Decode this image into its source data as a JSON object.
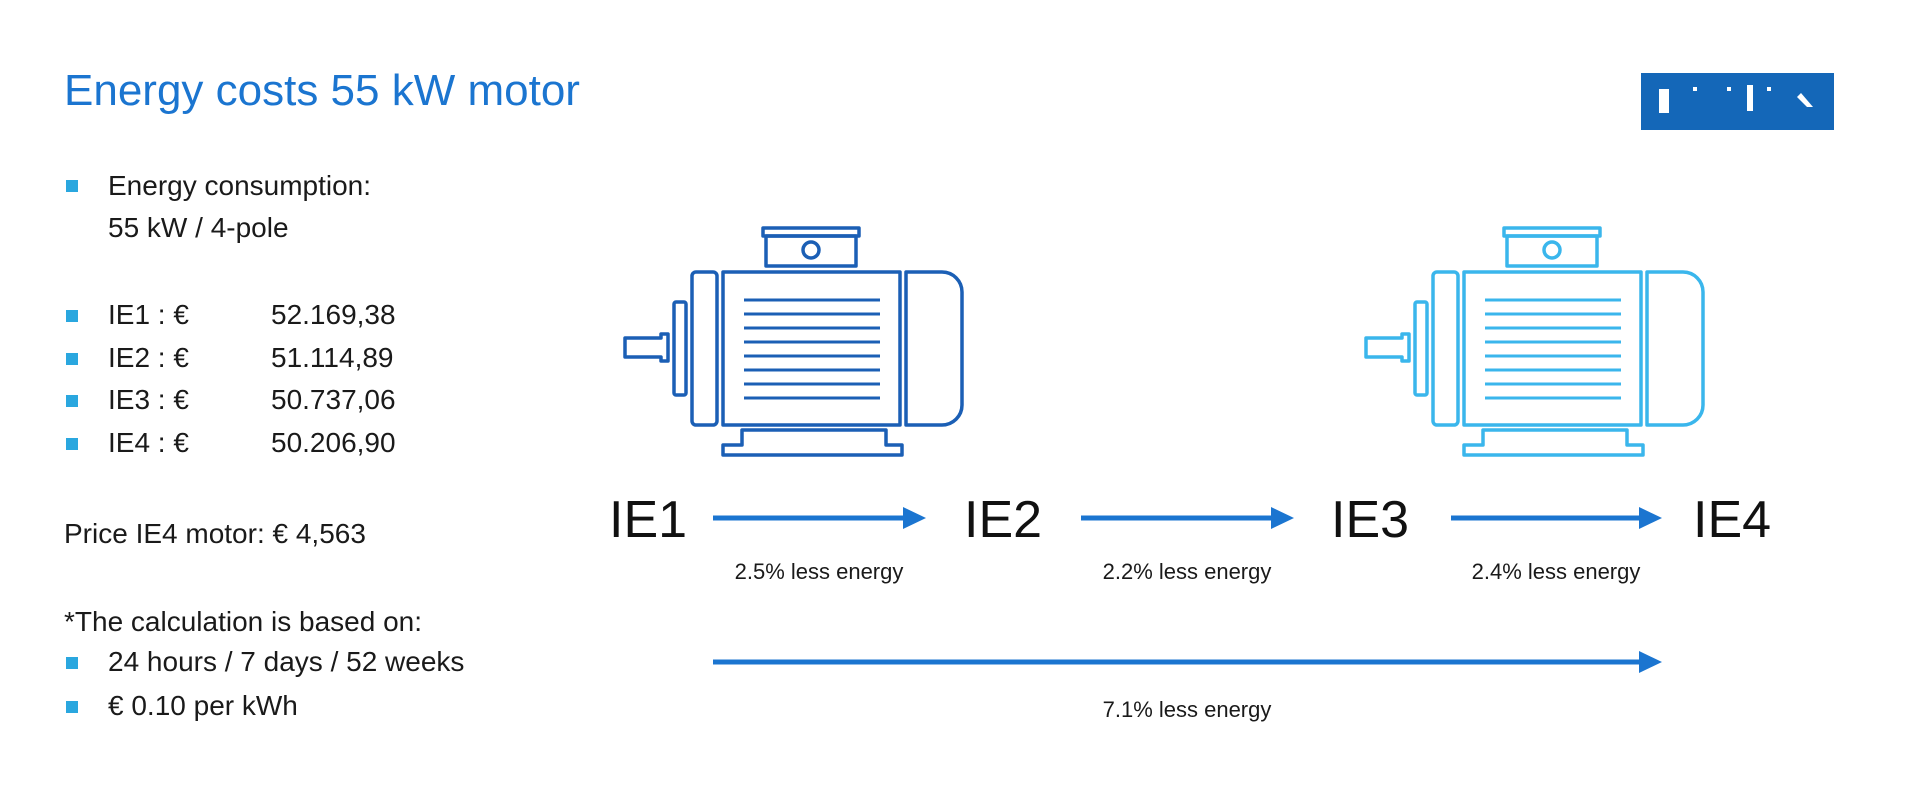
{
  "title": "Energy costs 55 kW motor",
  "logo_text": "ERIKS",
  "consumption": {
    "label": "Energy consumption:",
    "value": "55 kW / 4-pole"
  },
  "costs": [
    {
      "label": "IE1 : €",
      "value": "52.169,38"
    },
    {
      "label": "IE2 : €",
      "value": "51.114,89"
    },
    {
      "label": "IE3 : €",
      "value": "50.737,06"
    },
    {
      "label": "IE4 : €",
      "value": "50.206,90"
    }
  ],
  "price": "Price IE4 motor: € 4,563",
  "calc": {
    "heading": "*The calculation is based on:",
    "items": [
      "24 hours / 7 days / 52 weeks",
      "€ 0.10 per kWh"
    ]
  },
  "classes": [
    "IE1",
    "IE2",
    "IE3",
    "IE4"
  ],
  "steps": [
    "2.5% less energy",
    "2.2% less energy",
    "2.4% less energy"
  ],
  "total": "7.1% less energy",
  "colors": {
    "title": "#1b75d0",
    "arrow": "#1b75d0",
    "bullet": "#2aa7df",
    "motor_ie1": "#1b5fb5",
    "motor_ie4": "#3ab6ec",
    "logo": "#1467b8"
  }
}
